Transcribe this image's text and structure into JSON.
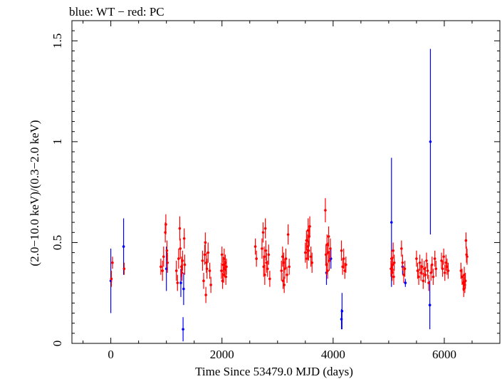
{
  "chart_data": {
    "type": "scatter",
    "title": "blue: WT − red: PC",
    "xlabel": "Time Since 53479.0 MJD (days)",
    "ylabel": "(2.0−10.0 keV)/(0.3−2.0 keV)",
    "xlim": [
      -700,
      7000
    ],
    "ylim": [
      0,
      1.6
    ],
    "xticks": [
      0,
      2000,
      4000,
      6000
    ],
    "yticks": [
      0,
      0.5,
      1,
      1.5
    ],
    "xtick_labels": [
      "0",
      "2000",
      "4000",
      "6000"
    ],
    "ytick_labels": [
      "0",
      "0.5",
      "1",
      "1.5"
    ],
    "grid": false,
    "series": [
      {
        "color": "#0000ff",
        "points": [
          {
            "x": 0,
            "y": 0.31,
            "err": 0.16
          },
          {
            "x": 230,
            "y": 0.48,
            "err": 0.14
          },
          {
            "x": 1000,
            "y": 0.37,
            "err": 0.11
          },
          {
            "x": 1260,
            "y": 0.3,
            "err": 0.07
          },
          {
            "x": 1300,
            "y": 0.07,
            "err": 0.06
          },
          {
            "x": 1310,
            "y": 0.27,
            "err": 0.08
          },
          {
            "x": 3880,
            "y": 0.35,
            "err": 0.06
          },
          {
            "x": 3960,
            "y": 0.42,
            "err": 0.05
          },
          {
            "x": 4150,
            "y": 0.12,
            "err": 0.05
          },
          {
            "x": 4160,
            "y": 0.16,
            "err": 0.09
          },
          {
            "x": 5050,
            "y": 0.6,
            "err": 0.32
          },
          {
            "x": 5250,
            "y": 0.38,
            "err": 0.04
          },
          {
            "x": 5300,
            "y": 0.3,
            "err": 0.02
          },
          {
            "x": 5740,
            "y": 0.19,
            "err": 0.12
          },
          {
            "x": 5750,
            "y": 1.0,
            "err": 0.46
          }
        ]
      },
      {
        "color": "#ff0000",
        "points": [
          {
            "x": 10,
            "y": 0.32,
            "err": 0.04
          },
          {
            "x": 30,
            "y": 0.4,
            "err": 0.03
          },
          {
            "x": 240,
            "y": 0.37,
            "err": 0.03
          },
          {
            "x": 900,
            "y": 0.38,
            "err": 0.04
          },
          {
            "x": 930,
            "y": 0.36,
            "err": 0.05
          },
          {
            "x": 950,
            "y": 0.43,
            "err": 0.05
          },
          {
            "x": 980,
            "y": 0.55,
            "err": 0.05
          },
          {
            "x": 990,
            "y": 0.59,
            "err": 0.05
          },
          {
            "x": 1010,
            "y": 0.46,
            "err": 0.05
          },
          {
            "x": 1020,
            "y": 0.4,
            "err": 0.05
          },
          {
            "x": 1180,
            "y": 0.36,
            "err": 0.05
          },
          {
            "x": 1200,
            "y": 0.3,
            "err": 0.04
          },
          {
            "x": 1220,
            "y": 0.42,
            "err": 0.05
          },
          {
            "x": 1240,
            "y": 0.57,
            "err": 0.06
          },
          {
            "x": 1250,
            "y": 0.47,
            "err": 0.05
          },
          {
            "x": 1270,
            "y": 0.38,
            "err": 0.05
          },
          {
            "x": 1280,
            "y": 0.35,
            "err": 0.04
          },
          {
            "x": 1290,
            "y": 0.41,
            "err": 0.05
          },
          {
            "x": 1320,
            "y": 0.52,
            "err": 0.05
          },
          {
            "x": 1330,
            "y": 0.39,
            "err": 0.05
          },
          {
            "x": 1650,
            "y": 0.41,
            "err": 0.05
          },
          {
            "x": 1670,
            "y": 0.31,
            "err": 0.04
          },
          {
            "x": 1690,
            "y": 0.44,
            "err": 0.05
          },
          {
            "x": 1700,
            "y": 0.5,
            "err": 0.05
          },
          {
            "x": 1710,
            "y": 0.24,
            "err": 0.04
          },
          {
            "x": 1720,
            "y": 0.4,
            "err": 0.05
          },
          {
            "x": 1730,
            "y": 0.37,
            "err": 0.05
          },
          {
            "x": 1750,
            "y": 0.45,
            "err": 0.05
          },
          {
            "x": 1780,
            "y": 0.36,
            "err": 0.04
          },
          {
            "x": 1800,
            "y": 0.29,
            "err": 0.04
          },
          {
            "x": 1990,
            "y": 0.36,
            "err": 0.04
          },
          {
            "x": 2000,
            "y": 0.44,
            "err": 0.04
          },
          {
            "x": 2010,
            "y": 0.31,
            "err": 0.04
          },
          {
            "x": 2020,
            "y": 0.39,
            "err": 0.04
          },
          {
            "x": 2030,
            "y": 0.34,
            "err": 0.04
          },
          {
            "x": 2040,
            "y": 0.42,
            "err": 0.05
          },
          {
            "x": 2050,
            "y": 0.37,
            "err": 0.04
          },
          {
            "x": 2060,
            "y": 0.4,
            "err": 0.04
          },
          {
            "x": 2070,
            "y": 0.33,
            "err": 0.04
          },
          {
            "x": 2080,
            "y": 0.38,
            "err": 0.04
          },
          {
            "x": 2600,
            "y": 0.48,
            "err": 0.04
          },
          {
            "x": 2620,
            "y": 0.42,
            "err": 0.04
          },
          {
            "x": 2720,
            "y": 0.47,
            "err": 0.05
          },
          {
            "x": 2740,
            "y": 0.55,
            "err": 0.05
          },
          {
            "x": 2750,
            "y": 0.38,
            "err": 0.05
          },
          {
            "x": 2760,
            "y": 0.43,
            "err": 0.05
          },
          {
            "x": 2770,
            "y": 0.34,
            "err": 0.05
          },
          {
            "x": 2780,
            "y": 0.57,
            "err": 0.05
          },
          {
            "x": 2790,
            "y": 0.46,
            "err": 0.05
          },
          {
            "x": 2800,
            "y": 0.4,
            "err": 0.05
          },
          {
            "x": 2820,
            "y": 0.37,
            "err": 0.04
          },
          {
            "x": 2840,
            "y": 0.44,
            "err": 0.05
          },
          {
            "x": 2860,
            "y": 0.32,
            "err": 0.04
          },
          {
            "x": 3070,
            "y": 0.36,
            "err": 0.05
          },
          {
            "x": 3090,
            "y": 0.43,
            "err": 0.05
          },
          {
            "x": 3100,
            "y": 0.31,
            "err": 0.04
          },
          {
            "x": 3110,
            "y": 0.4,
            "err": 0.05
          },
          {
            "x": 3120,
            "y": 0.29,
            "err": 0.04
          },
          {
            "x": 3130,
            "y": 0.37,
            "err": 0.05
          },
          {
            "x": 3150,
            "y": 0.42,
            "err": 0.05
          },
          {
            "x": 3170,
            "y": 0.34,
            "err": 0.04
          },
          {
            "x": 3190,
            "y": 0.54,
            "err": 0.05
          },
          {
            "x": 3210,
            "y": 0.38,
            "err": 0.04
          },
          {
            "x": 3500,
            "y": 0.45,
            "err": 0.05
          },
          {
            "x": 3520,
            "y": 0.51,
            "err": 0.05
          },
          {
            "x": 3530,
            "y": 0.42,
            "err": 0.05
          },
          {
            "x": 3540,
            "y": 0.48,
            "err": 0.06
          },
          {
            "x": 3550,
            "y": 0.56,
            "err": 0.06
          },
          {
            "x": 3560,
            "y": 0.46,
            "err": 0.05
          },
          {
            "x": 3570,
            "y": 0.53,
            "err": 0.05
          },
          {
            "x": 3580,
            "y": 0.58,
            "err": 0.05
          },
          {
            "x": 3600,
            "y": 0.43,
            "err": 0.05
          },
          {
            "x": 3620,
            "y": 0.4,
            "err": 0.05
          },
          {
            "x": 3860,
            "y": 0.66,
            "err": 0.06
          },
          {
            "x": 3870,
            "y": 0.44,
            "err": 0.05
          },
          {
            "x": 3880,
            "y": 0.39,
            "err": 0.05
          },
          {
            "x": 3890,
            "y": 0.49,
            "err": 0.05
          },
          {
            "x": 3900,
            "y": 0.36,
            "err": 0.04
          },
          {
            "x": 3910,
            "y": 0.45,
            "err": 0.05
          },
          {
            "x": 3920,
            "y": 0.53,
            "err": 0.05
          },
          {
            "x": 3930,
            "y": 0.41,
            "err": 0.05
          },
          {
            "x": 3950,
            "y": 0.47,
            "err": 0.05
          },
          {
            "x": 4150,
            "y": 0.46,
            "err": 0.05
          },
          {
            "x": 4170,
            "y": 0.38,
            "err": 0.04
          },
          {
            "x": 4190,
            "y": 0.42,
            "err": 0.05
          },
          {
            "x": 4210,
            "y": 0.36,
            "err": 0.04
          },
          {
            "x": 4230,
            "y": 0.39,
            "err": 0.04
          },
          {
            "x": 5040,
            "y": 0.37,
            "err": 0.04
          },
          {
            "x": 5050,
            "y": 0.42,
            "err": 0.04
          },
          {
            "x": 5060,
            "y": 0.35,
            "err": 0.04
          },
          {
            "x": 5070,
            "y": 0.39,
            "err": 0.04
          },
          {
            "x": 5080,
            "y": 0.46,
            "err": 0.04
          },
          {
            "x": 5090,
            "y": 0.33,
            "err": 0.04
          },
          {
            "x": 5100,
            "y": 0.4,
            "err": 0.04
          },
          {
            "x": 5230,
            "y": 0.47,
            "err": 0.04
          },
          {
            "x": 5250,
            "y": 0.4,
            "err": 0.04
          },
          {
            "x": 5270,
            "y": 0.34,
            "err": 0.04
          },
          {
            "x": 5290,
            "y": 0.37,
            "err": 0.04
          },
          {
            "x": 5500,
            "y": 0.42,
            "err": 0.04
          },
          {
            "x": 5520,
            "y": 0.36,
            "err": 0.04
          },
          {
            "x": 5540,
            "y": 0.33,
            "err": 0.04
          },
          {
            "x": 5560,
            "y": 0.4,
            "err": 0.04
          },
          {
            "x": 5580,
            "y": 0.35,
            "err": 0.04
          },
          {
            "x": 5600,
            "y": 0.38,
            "err": 0.04
          },
          {
            "x": 5620,
            "y": 0.31,
            "err": 0.04
          },
          {
            "x": 5640,
            "y": 0.37,
            "err": 0.04
          },
          {
            "x": 5660,
            "y": 0.34,
            "err": 0.04
          },
          {
            "x": 5680,
            "y": 0.41,
            "err": 0.04
          },
          {
            "x": 5700,
            "y": 0.36,
            "err": 0.04
          },
          {
            "x": 5720,
            "y": 0.3,
            "err": 0.04
          },
          {
            "x": 5760,
            "y": 0.35,
            "err": 0.04
          },
          {
            "x": 5780,
            "y": 0.39,
            "err": 0.04
          },
          {
            "x": 5800,
            "y": 0.33,
            "err": 0.04
          },
          {
            "x": 5830,
            "y": 0.42,
            "err": 0.04
          },
          {
            "x": 5850,
            "y": 0.37,
            "err": 0.04
          },
          {
            "x": 5950,
            "y": 0.41,
            "err": 0.04
          },
          {
            "x": 5970,
            "y": 0.37,
            "err": 0.04
          },
          {
            "x": 5990,
            "y": 0.43,
            "err": 0.04
          },
          {
            "x": 6010,
            "y": 0.35,
            "err": 0.04
          },
          {
            "x": 6030,
            "y": 0.4,
            "err": 0.04
          },
          {
            "x": 6050,
            "y": 0.38,
            "err": 0.04
          },
          {
            "x": 6070,
            "y": 0.36,
            "err": 0.04
          },
          {
            "x": 6300,
            "y": 0.36,
            "err": 0.04
          },
          {
            "x": 6320,
            "y": 0.33,
            "err": 0.04
          },
          {
            "x": 6340,
            "y": 0.3,
            "err": 0.04
          },
          {
            "x": 6350,
            "y": 0.27,
            "err": 0.04
          },
          {
            "x": 6360,
            "y": 0.34,
            "err": 0.04
          },
          {
            "x": 6370,
            "y": 0.29,
            "err": 0.04
          },
          {
            "x": 6380,
            "y": 0.31,
            "err": 0.04
          },
          {
            "x": 6390,
            "y": 0.51,
            "err": 0.04
          },
          {
            "x": 6400,
            "y": 0.44,
            "err": 0.04
          },
          {
            "x": 6410,
            "y": 0.43,
            "err": 0.04
          }
        ]
      }
    ]
  }
}
